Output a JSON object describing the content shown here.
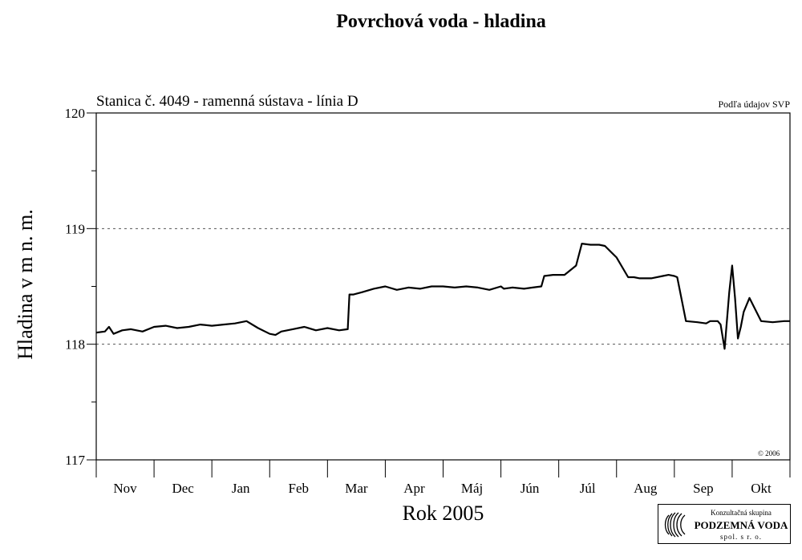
{
  "chart_data": {
    "type": "line",
    "title": "Povrchová voda - hladina",
    "subtitle": "Stanica č. 4049 - ramenná sústava - línia D",
    "source_note": "Podľa údajov SVP",
    "copyright": "© 2006",
    "xlabel": "Rok 2005",
    "ylabel": "Hladina v m n. m.",
    "x_ticks": [
      "Nov",
      "Dec",
      "Jan",
      "Feb",
      "Mar",
      "Apr",
      "Máj",
      "Jún",
      "Júl",
      "Aug",
      "Sep",
      "Okt"
    ],
    "y_ticks": [
      "117",
      "118",
      "119",
      "120"
    ],
    "ylim": [
      117,
      120
    ],
    "xlim_months": [
      0,
      12
    ],
    "grid": "dashed at 118 and 119",
    "series": [
      {
        "color": "#000000",
        "x": [
          0.0,
          0.15,
          0.22,
          0.3,
          0.45,
          0.6,
          0.8,
          1.0,
          1.2,
          1.4,
          1.6,
          1.8,
          2.0,
          2.2,
          2.4,
          2.6,
          2.8,
          3.0,
          3.1,
          3.2,
          3.4,
          3.6,
          3.8,
          4.0,
          4.2,
          4.35,
          4.38,
          4.45,
          4.6,
          4.8,
          5.0,
          5.2,
          5.4,
          5.6,
          5.8,
          6.0,
          6.2,
          6.4,
          6.6,
          6.8,
          7.0,
          7.05,
          7.2,
          7.4,
          7.55,
          7.7,
          7.75,
          7.9,
          8.1,
          8.3,
          8.4,
          8.55,
          8.7,
          8.8,
          9.0,
          9.2,
          9.3,
          9.4,
          9.6,
          9.8,
          9.9,
          10.0,
          10.05,
          10.2,
          10.4,
          10.55,
          10.62,
          10.7,
          10.75,
          10.8,
          10.87,
          10.95,
          11.0,
          11.05,
          11.1,
          11.15,
          11.2,
          11.3,
          11.5,
          11.7,
          11.9,
          12.0
        ],
        "y": [
          118.1,
          118.11,
          118.15,
          118.09,
          118.12,
          118.13,
          118.11,
          118.15,
          118.16,
          118.14,
          118.15,
          118.17,
          118.16,
          118.17,
          118.18,
          118.2,
          118.14,
          118.09,
          118.08,
          118.11,
          118.13,
          118.15,
          118.12,
          118.14,
          118.12,
          118.13,
          118.43,
          118.43,
          118.45,
          118.48,
          118.5,
          118.47,
          118.49,
          118.48,
          118.5,
          118.5,
          118.49,
          118.5,
          118.49,
          118.47,
          118.5,
          118.48,
          118.49,
          118.48,
          118.49,
          118.5,
          118.59,
          118.6,
          118.6,
          118.68,
          118.87,
          118.86,
          118.86,
          118.85,
          118.75,
          118.58,
          118.58,
          118.57,
          118.57,
          118.59,
          118.6,
          118.59,
          118.58,
          118.2,
          118.19,
          118.18,
          118.2,
          118.2,
          118.2,
          118.17,
          117.96,
          118.45,
          118.68,
          118.4,
          118.05,
          118.15,
          118.28,
          118.4,
          118.2,
          118.19,
          118.2,
          118.2
        ]
      }
    ]
  },
  "logo": {
    "line1": "Konzultačná skupina",
    "line2": "PODZEMNÁ VODA",
    "line3": "spol. s r. o."
  }
}
